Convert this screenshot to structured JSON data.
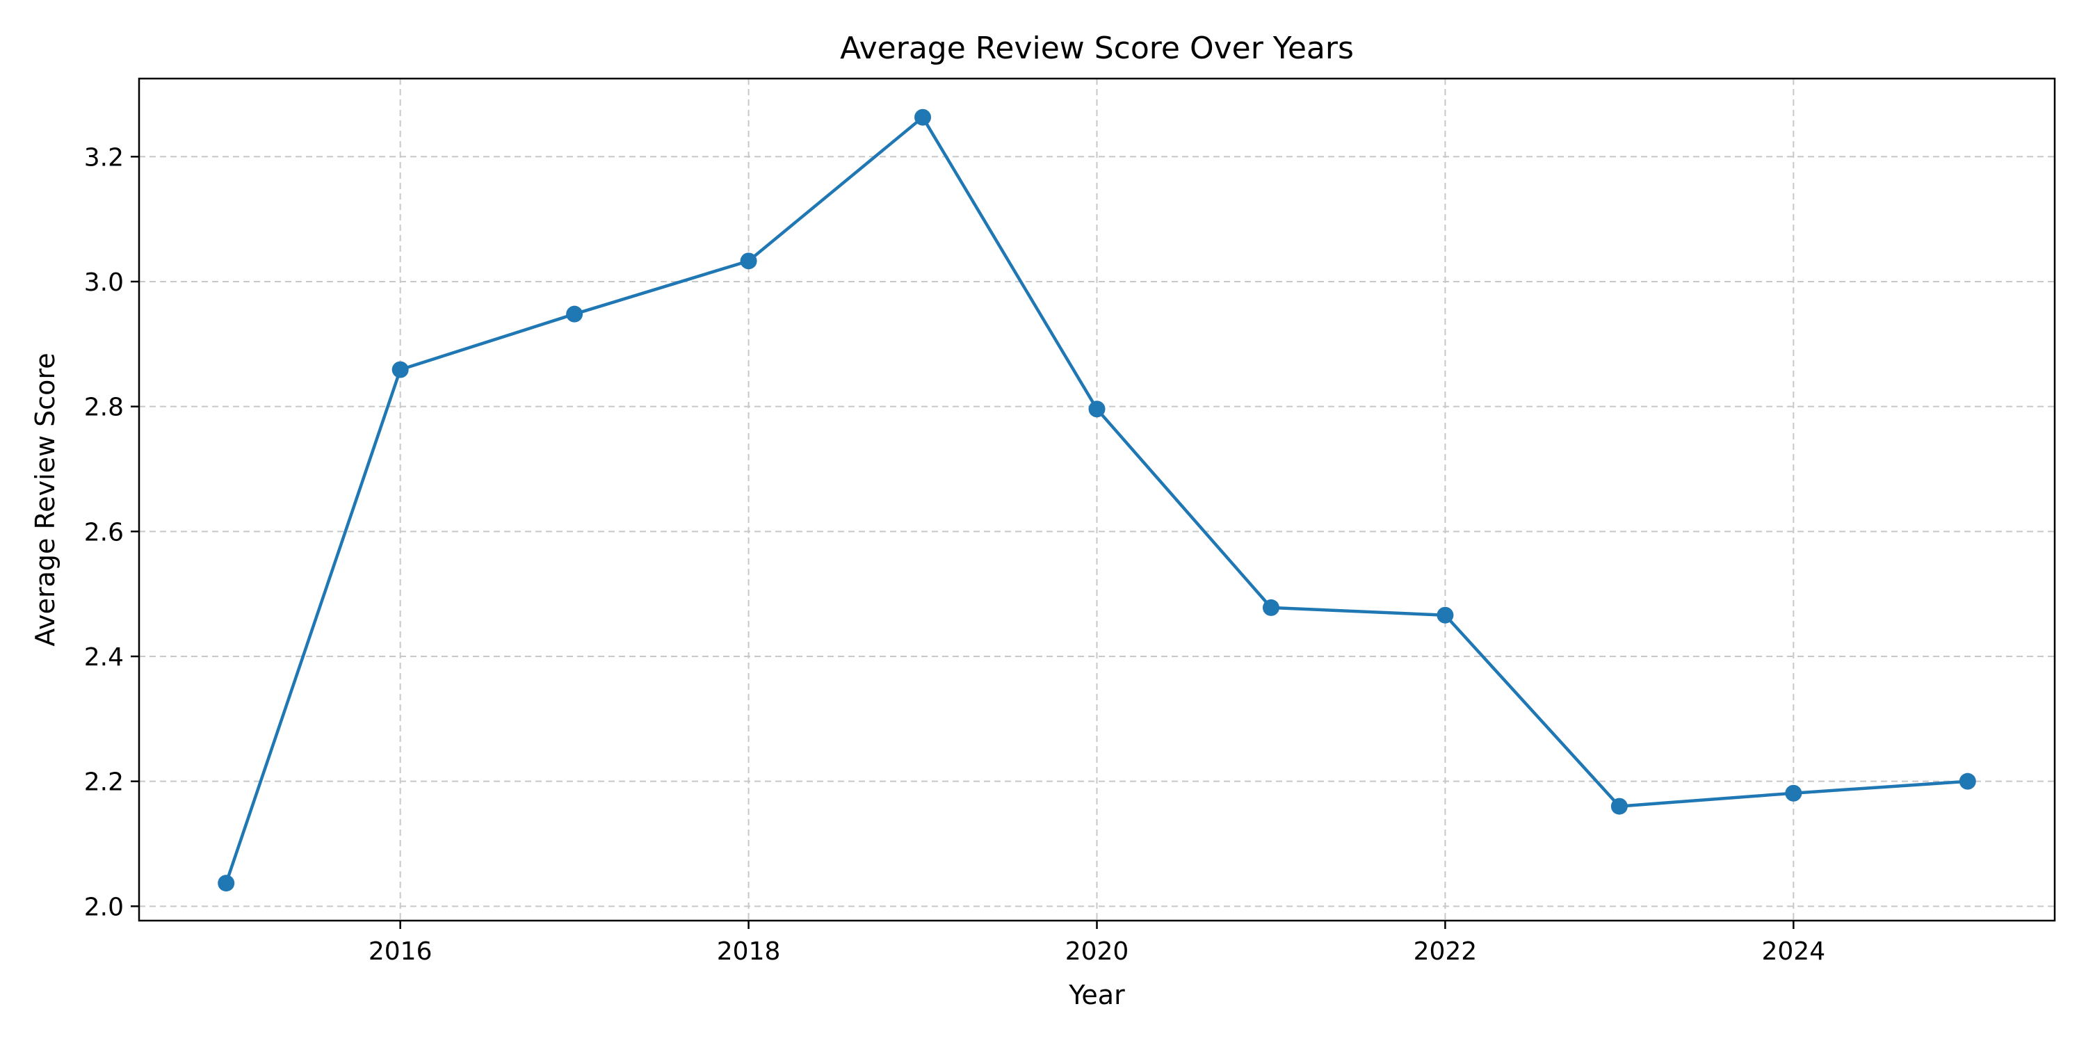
{
  "chart_data": {
    "type": "line",
    "title": "Average Review Score Over Years",
    "xlabel": "Year",
    "ylabel": "Average Review Score",
    "xlim": [
      2014.5,
      2025.5
    ],
    "ylim": [
      1.977,
      3.325
    ],
    "x_ticks": [
      2016,
      2018,
      2020,
      2022,
      2024
    ],
    "y_ticks": [
      2.0,
      2.2,
      2.4,
      2.6,
      2.8,
      3.0,
      3.2
    ],
    "y_tick_labels": [
      "2.0",
      "2.2",
      "2.4",
      "2.6",
      "2.8",
      "3.0",
      "3.2"
    ],
    "grid": true,
    "series": [
      {
        "color": "#1f77b4",
        "marker": "circle",
        "x": [
          2015,
          2016,
          2017,
          2018,
          2019,
          2020,
          2021,
          2022,
          2023,
          2024,
          2025
        ],
        "y": [
          2.037,
          2.859,
          2.948,
          3.033,
          3.263,
          2.796,
          2.478,
          2.466,
          2.16,
          2.181,
          2.2
        ]
      }
    ]
  }
}
